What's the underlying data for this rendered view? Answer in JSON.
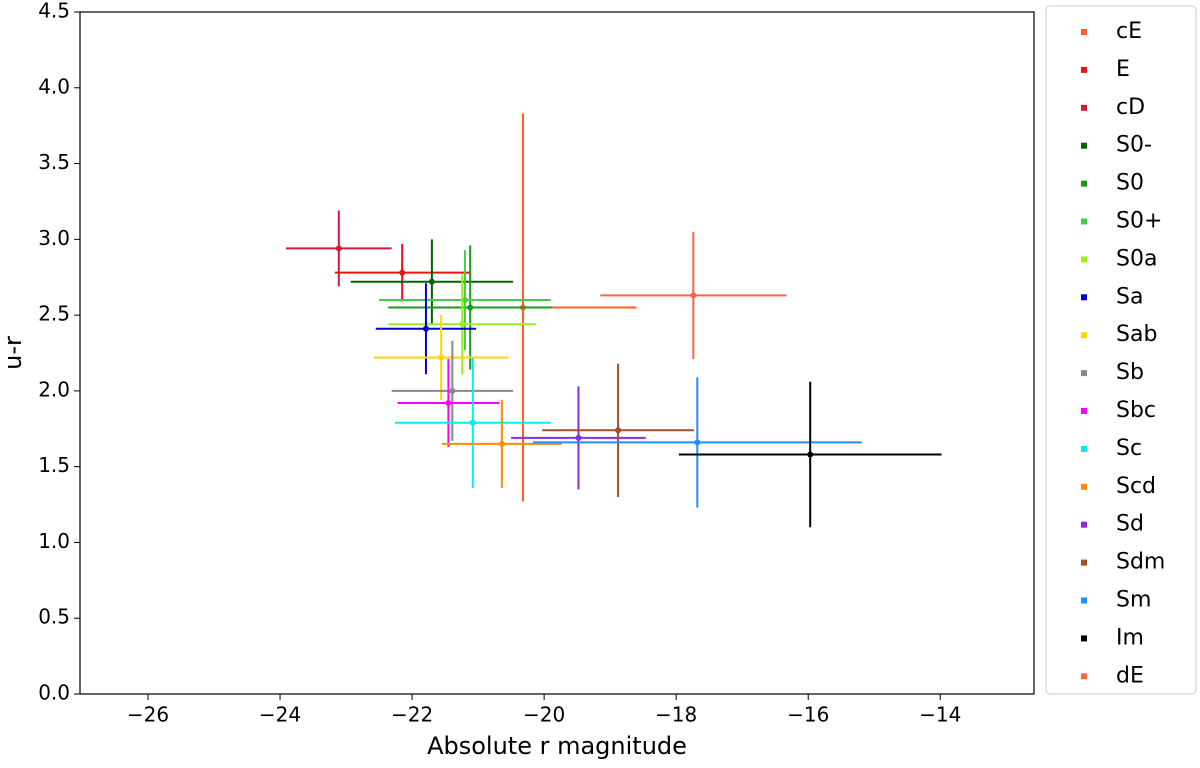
{
  "chart_data": {
    "type": "scatter",
    "x_label": "Absolute r magnitude",
    "y_label": "u-r",
    "xlim": [
      -27.03,
      -12.58
    ],
    "ylim": [
      0,
      4.5
    ],
    "xticks": [
      -26,
      -24,
      -22,
      -20,
      -18,
      -16,
      -14
    ],
    "yticks": [
      {
        "value": 0,
        "label": "0.0"
      },
      0.5,
      {
        "value": 1,
        "label": "1.0"
      },
      1.5,
      {
        "value": 2,
        "label": "2.0"
      },
      2.5,
      {
        "value": 3,
        "label": "3.0"
      },
      3.5,
      {
        "value": 4,
        "label": "4.0"
      },
      4.5
    ],
    "legend": "outside-right",
    "series": [
      {
        "name": "cE",
        "color": "#ff6020",
        "x": [
          -20.32
        ],
        "values": [
          2.55
        ],
        "xerr": [
          1.72
        ],
        "yerr": [
          1.28
        ]
      },
      {
        "name": "E",
        "color": "#ee1111",
        "x": [
          -22.15
        ],
        "values": [
          2.78
        ],
        "xerr": [
          1.02
        ],
        "yerr": [
          0.19
        ]
      },
      {
        "name": "cD",
        "color": "#dc143c",
        "x": [
          -23.11
        ],
        "values": [
          2.94
        ],
        "xerr": [
          0.8
        ],
        "yerr": [
          0.25
        ]
      },
      {
        "name": "S0-",
        "color": "#006400",
        "x": [
          -21.7
        ],
        "values": [
          2.72
        ],
        "xerr": [
          1.23
        ],
        "yerr": [
          0.28
        ]
      },
      {
        "name": "S0",
        "color": "#1a9a1a",
        "x": [
          -21.12
        ],
        "values": [
          2.55
        ],
        "xerr": [
          1.24
        ],
        "yerr": [
          0.41
        ]
      },
      {
        "name": "S0+",
        "color": "#44cc44",
        "x": [
          -21.2
        ],
        "values": [
          2.6
        ],
        "xerr": [
          1.3
        ],
        "yerr": [
          0.33
        ]
      },
      {
        "name": "S0a",
        "color": "#99ee22",
        "x": [
          -21.24
        ],
        "values": [
          2.44
        ],
        "xerr": [
          1.12
        ],
        "yerr": [
          0.33
        ]
      },
      {
        "name": "Sa",
        "color": "#0000dd",
        "x": [
          -21.79
        ],
        "values": [
          2.41
        ],
        "xerr": [
          0.76
        ],
        "yerr": [
          0.3
        ]
      },
      {
        "name": "Sab",
        "color": "#ffd700",
        "x": [
          -21.56
        ],
        "values": [
          2.22
        ],
        "xerr": [
          1.02
        ],
        "yerr": [
          0.28
        ]
      },
      {
        "name": "Sb",
        "color": "#888888",
        "x": [
          -21.39
        ],
        "values": [
          2.0
        ],
        "xerr": [
          0.92
        ],
        "yerr": [
          0.33
        ]
      },
      {
        "name": "Sbc",
        "color": "#ff00ff",
        "x": [
          -21.45
        ],
        "values": [
          1.92
        ],
        "xerr": [
          0.77
        ],
        "yerr": [
          0.29
        ]
      },
      {
        "name": "Sc",
        "color": "#00eeee",
        "x": [
          -21.08
        ],
        "values": [
          1.79
        ],
        "xerr": [
          1.18
        ],
        "yerr": [
          0.43
        ]
      },
      {
        "name": "Scd",
        "color": "#ff8c00",
        "x": [
          -20.64
        ],
        "values": [
          1.65
        ],
        "xerr": [
          0.91
        ],
        "yerr": [
          0.29
        ]
      },
      {
        "name": "Sd",
        "color": "#8a2be2",
        "x": [
          -19.48
        ],
        "values": [
          1.69
        ],
        "xerr": [
          1.02
        ],
        "yerr": [
          0.34
        ]
      },
      {
        "name": "Sdm",
        "color": "#a0522d",
        "x": [
          -18.88
        ],
        "values": [
          1.74
        ],
        "xerr": [
          1.15
        ],
        "yerr": [
          0.44
        ]
      },
      {
        "name": "Sm",
        "color": "#1e90ff",
        "x": [
          -17.68
        ],
        "values": [
          1.66
        ],
        "xerr": [
          2.49
        ],
        "yerr": [
          0.43
        ]
      },
      {
        "name": "Im",
        "color": "#000000",
        "x": [
          -15.97
        ],
        "values": [
          1.58
        ],
        "xerr": [
          1.99
        ],
        "yerr": [
          0.48
        ]
      },
      {
        "name": "dE",
        "color": "#ff6347",
        "x": [
          -17.74
        ],
        "values": [
          2.63
        ],
        "xerr": [
          1.41
        ],
        "yerr": [
          0.42
        ]
      }
    ]
  }
}
